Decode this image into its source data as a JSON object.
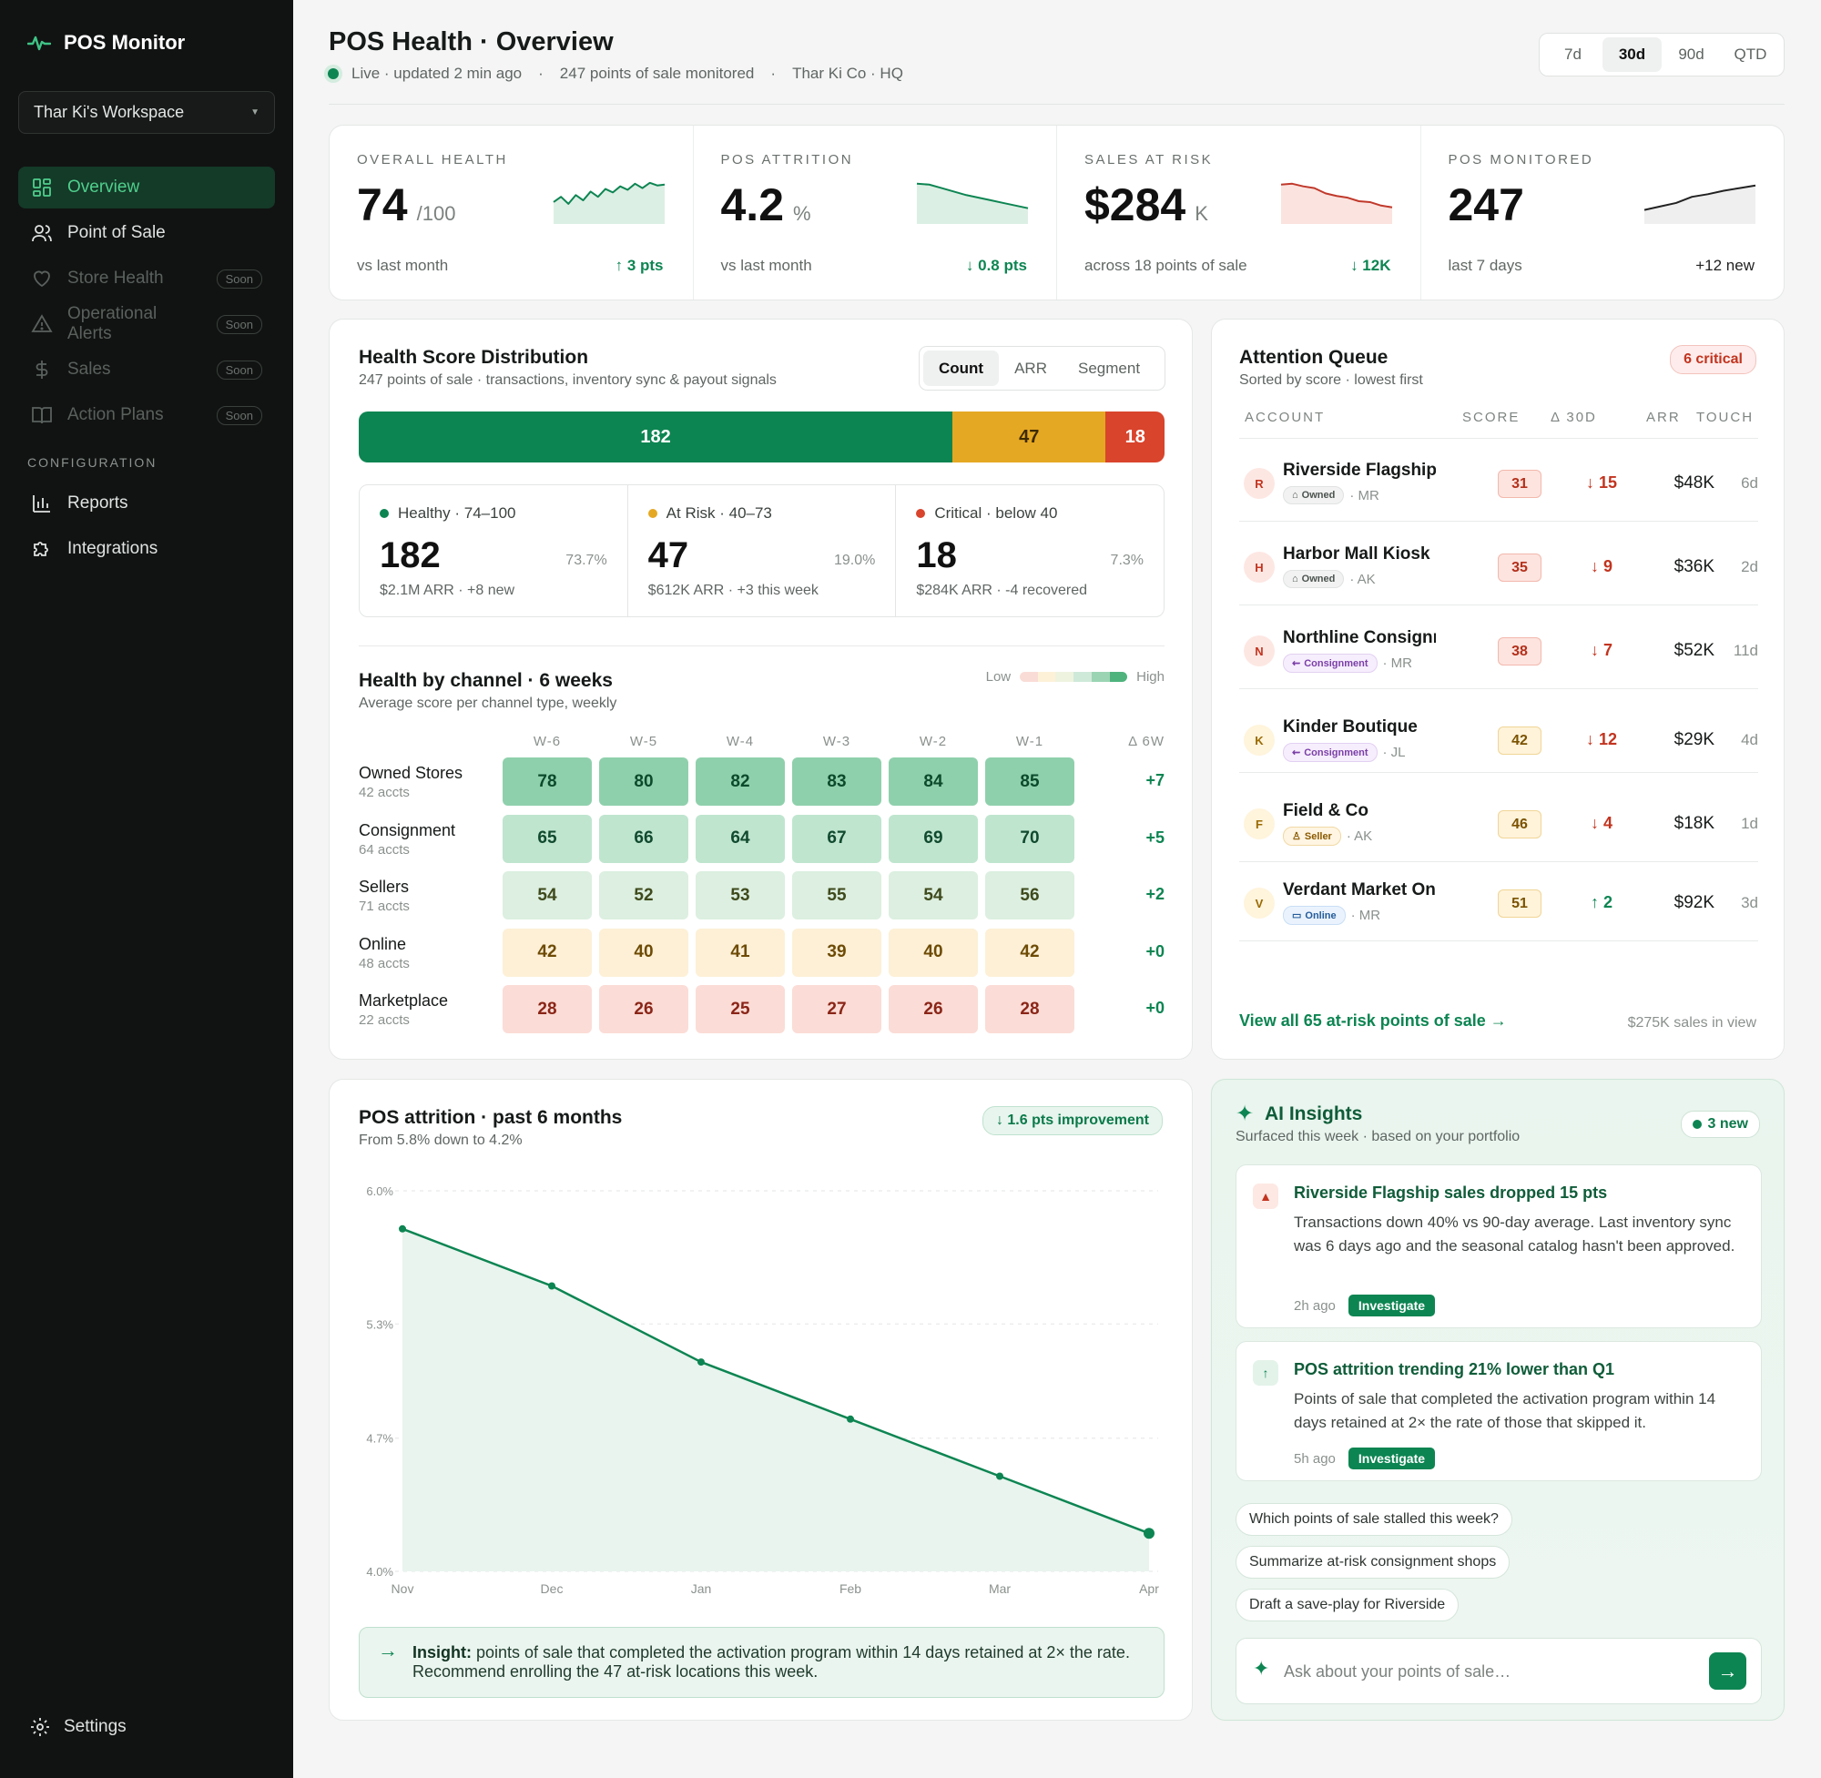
{
  "app": {
    "name": "POS Monitor",
    "workspace": "Thar Ki's Workspace"
  },
  "nav": {
    "items": [
      {
        "label": "Overview",
        "icon": "grid-icon"
      },
      {
        "label": "Point of Sale",
        "icon": "users-icon"
      },
      {
        "label": "Store Health",
        "icon": "heart-icon",
        "badge": "Soon"
      },
      {
        "label": "Operational Alerts",
        "icon": "alert-icon",
        "badge": "Soon"
      },
      {
        "label": "Sales",
        "icon": "dollar-icon",
        "badge": "Soon"
      },
      {
        "label": "Action Plans",
        "icon": "book-icon",
        "badge": "Soon"
      }
    ],
    "section_label": "CONFIGURATION",
    "config_items": [
      {
        "label": "Reports",
        "icon": "bar-chart-icon"
      },
      {
        "label": "Integrations",
        "icon": "puzzle-icon"
      }
    ],
    "settings": "Settings"
  },
  "header": {
    "title": "POS Health · Overview",
    "status": "Live · updated 2 min ago",
    "monitored": "247 points of sale monitored",
    "org": "Thar Ki Co · HQ",
    "sep": "·",
    "ranges": [
      "7d",
      "30d",
      "90d",
      "QTD"
    ],
    "active_range": "30d"
  },
  "kpis": [
    {
      "label": "OVERALL HEALTH",
      "value": "74",
      "unit": "/100",
      "foot": "vs last month",
      "delta": "↑ 3 pts",
      "trend": "up",
      "spark": [
        48,
        60,
        44,
        64,
        52,
        72,
        60,
        78,
        70,
        84,
        76,
        90,
        80,
        92,
        86,
        88
      ]
    },
    {
      "label": "POS ATTRITION",
      "value": "4.2",
      "unit": "%",
      "foot": "vs last month",
      "delta": "↓ 0.8 pts",
      "trend": "down",
      "spark": [
        90,
        88,
        80,
        72,
        64,
        58,
        52,
        46,
        40,
        34
      ]
    },
    {
      "label": "SALES AT RISK",
      "value": "$284",
      "unit": "K",
      "foot": "across 18 points of sale",
      "delta": "↓ 12K",
      "trend": "down",
      "spark": [
        88,
        90,
        84,
        80,
        68,
        62,
        58,
        50,
        48,
        40,
        36
      ]
    },
    {
      "label": "POS MONITORED",
      "value": "247",
      "unit": "",
      "foot": "last 7 days",
      "delta": "+12 new",
      "trend": "flat",
      "spark": [
        30,
        38,
        46,
        60,
        66,
        74,
        80,
        86
      ]
    }
  ],
  "distribution": {
    "title": "Health Score Distribution",
    "subtitle": "247 points of sale · transactions, inventory sync & payout signals",
    "tabs": [
      "Count",
      "ARR",
      "Segment"
    ],
    "active_tab": "Count",
    "bar": [
      {
        "label": "182",
        "value": 182,
        "color": "#0d8552"
      },
      {
        "label": "47",
        "value": 47,
        "color": "#e5a823"
      },
      {
        "label": "18",
        "value": 18,
        "color": "#d9442c"
      }
    ],
    "tiers": [
      {
        "label": "Healthy · 74–100",
        "count": "182",
        "pct": "73.7%",
        "foot": "$2.1M ARR · +8 new",
        "color": "#0d8552"
      },
      {
        "label": "At Risk · 40–73",
        "count": "47",
        "pct": "19.0%",
        "foot": "$612K ARR · +3 this week",
        "color": "#e5a823"
      },
      {
        "label": "Critical · below 40",
        "count": "18",
        "pct": "7.3%",
        "foot": "$284K ARR · -4 recovered",
        "color": "#d9442c"
      }
    ]
  },
  "heatmap": {
    "title": "Health by channel · 6 weeks",
    "subtitle": "Average score per channel type, weekly",
    "legend_low": "Low",
    "legend_high": "High",
    "weeks": [
      "W-6",
      "W-5",
      "W-4",
      "W-3",
      "W-2",
      "W-1"
    ],
    "delta_header": "Δ 6W",
    "rows": [
      {
        "name": "Owned Stores",
        "accts": "42 accts",
        "values": [
          78,
          80,
          82,
          83,
          84,
          85
        ],
        "delta": "+7"
      },
      {
        "name": "Consignment",
        "accts": "64 accts",
        "values": [
          65,
          66,
          64,
          67,
          69,
          70
        ],
        "delta": "+5"
      },
      {
        "name": "Sellers",
        "accts": "71 accts",
        "values": [
          54,
          52,
          53,
          55,
          54,
          56
        ],
        "delta": "+2"
      },
      {
        "name": "Online",
        "accts": "48 accts",
        "values": [
          42,
          40,
          41,
          39,
          40,
          42
        ],
        "delta": "+0"
      },
      {
        "name": "Marketplace",
        "accts": "22 accts",
        "values": [
          28,
          26,
          25,
          27,
          26,
          28
        ],
        "delta": "+0"
      }
    ]
  },
  "queue": {
    "title": "Attention Queue",
    "subtitle": "Sorted by score · lowest first",
    "badge": "6 critical",
    "columns": [
      "ACCOUNT",
      "SCORE",
      "Δ 30D",
      "ARR",
      "TOUCH"
    ],
    "rows": [
      {
        "initial": "R",
        "name": "Riverside Flagship",
        "tag": "Owned",
        "tag_type": "owned",
        "owner": "· MR",
        "score": "31",
        "delta": "↓ 15",
        "arr": "$48K",
        "touch": "6d"
      },
      {
        "initial": "H",
        "name": "Harbor Mall Kiosk",
        "tag": "Owned",
        "tag_type": "owned",
        "owner": "· AK",
        "score": "35",
        "delta": "↓ 9",
        "arr": "$36K",
        "touch": "2d"
      },
      {
        "initial": "N",
        "name": "Northline Consignment",
        "tag": "Consignment",
        "tag_type": "consign",
        "owner": "· MR",
        "score": "38",
        "delta": "↓ 7",
        "arr": "$52K",
        "touch": "11d"
      },
      {
        "initial": "K",
        "name": "Kinder Boutique",
        "tag": "Consignment",
        "tag_type": "consign",
        "owner": "· JL",
        "score": "42",
        "delta": "↓ 12",
        "arr": "$29K",
        "touch": "4d"
      },
      {
        "initial": "F",
        "name": "Field & Co",
        "tag": "Seller",
        "tag_type": "seller",
        "owner": "· AK",
        "score": "46",
        "delta": "↓ 4",
        "arr": "$18K",
        "touch": "1d"
      },
      {
        "initial": "V",
        "name": "Verdant Market Online",
        "tag": "Online",
        "tag_type": "online",
        "owner": "· MR",
        "score": "51",
        "delta": "↑ 2",
        "arr": "$92K",
        "touch": "3d"
      }
    ],
    "link": "View all 65 at-risk points of sale →",
    "footnote": "$275K sales in view"
  },
  "attrition": {
    "title": "POS attrition · past 6 months",
    "subtitle": "From 5.8% down to 4.2%",
    "badge": "↓ 1.6 pts improvement",
    "insight_label": "Insight:",
    "insight_text": "points of sale that completed the activation program within 14 days retained at 2× the rate. Recommend enrolling the 47 at-risk locations this week."
  },
  "chart_data": {
    "type": "area",
    "title": "POS attrition · past 6 months",
    "xlabel": "",
    "ylabel": "",
    "categories": [
      "Nov",
      "Dec",
      "Jan",
      "Feb",
      "Mar",
      "Apr"
    ],
    "series": [
      {
        "values": [
          5.8,
          5.5,
          5.1,
          4.8,
          4.5,
          4.2
        ]
      }
    ],
    "yticks": [
      "6.0%",
      "5.3%",
      "4.7%",
      "4.0%"
    ],
    "ytick_values": [
      6.0,
      5.3,
      4.7,
      4.0
    ],
    "ylim": [
      4.0,
      6.0
    ],
    "grid": true,
    "color": "#0d8552"
  },
  "ai": {
    "title": "AI Insights",
    "subtitle": "Surfaced this week · based on your portfolio",
    "badge": "3 new",
    "insights": [
      {
        "icon": "warning-icon",
        "title": "Riverside Flagship sales dropped 15 pts",
        "body": "Transactions down 40% vs 90-day average. Last inventory sync was 6 days ago and the seasonal catalog hasn't been approved.",
        "time": "2h ago",
        "action": "Investigate"
      },
      {
        "icon": "arrow-up-icon",
        "title": "POS attrition trending 21% lower than Q1",
        "body": "Points of sale that completed the activation program within 14 days retained at 2× the rate of those that skipped it.",
        "time": "5h ago",
        "action": "Investigate"
      }
    ],
    "suggestions": [
      "Which points of sale stalled this week?",
      "Summarize at-risk consignment shops",
      "Draft a save-play for Riverside"
    ],
    "placeholder": "Ask about your points of sale…"
  }
}
